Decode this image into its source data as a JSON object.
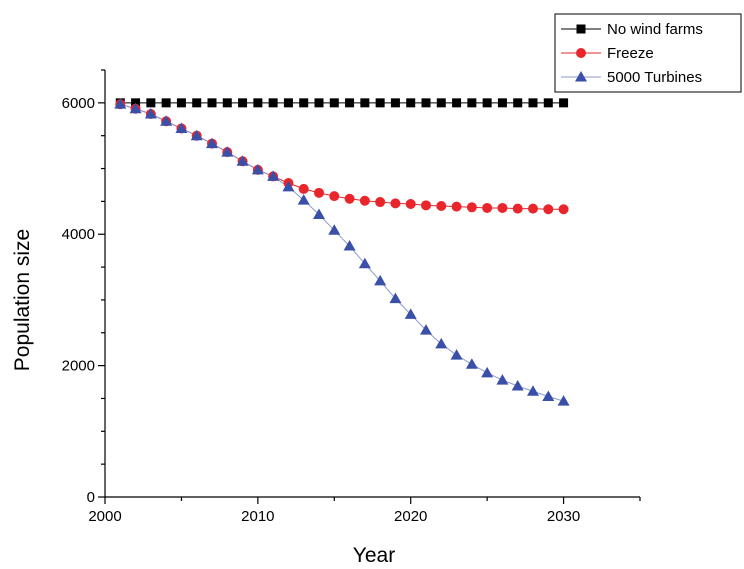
{
  "chart_data": {
    "type": "line",
    "title": "",
    "xlabel": "Year",
    "ylabel": "Population size",
    "xlim": [
      2000,
      2035
    ],
    "ylim": [
      0,
      6500
    ],
    "x_ticks": [
      2000,
      2010,
      2020,
      2030
    ],
    "y_ticks": [
      0,
      2000,
      4000,
      6000
    ],
    "grid": false,
    "legend_position": "top-right",
    "x": [
      2001,
      2002,
      2003,
      2004,
      2005,
      2006,
      2007,
      2008,
      2009,
      2010,
      2011,
      2012,
      2013,
      2014,
      2015,
      2016,
      2017,
      2018,
      2019,
      2020,
      2021,
      2022,
      2023,
      2024,
      2025,
      2026,
      2027,
      2028,
      2029,
      2030
    ],
    "series": [
      {
        "name": "No wind farms",
        "color": "#000000",
        "marker": "square",
        "values": [
          6000,
          6000,
          6000,
          6000,
          6000,
          6000,
          6000,
          6000,
          6000,
          6000,
          6000,
          6000,
          6000,
          6000,
          6000,
          6000,
          6000,
          6000,
          6000,
          6000,
          6000,
          6000,
          6000,
          6000,
          6000,
          6000,
          6000,
          6000,
          6000,
          6000
        ]
      },
      {
        "name": "Freeze",
        "color": "#e8262b",
        "marker": "circle",
        "values": [
          5980,
          5910,
          5830,
          5720,
          5610,
          5500,
          5380,
          5250,
          5110,
          4980,
          4880,
          4780,
          4690,
          4630,
          4580,
          4540,
          4510,
          4490,
          4470,
          4460,
          4440,
          4430,
          4420,
          4410,
          4400,
          4400,
          4390,
          4390,
          4380,
          4380
        ]
      },
      {
        "name": "5000 Turbines",
        "color": "#3a50a8",
        "line_color": "#8e9ad0",
        "marker": "triangle",
        "values": [
          5980,
          5910,
          5830,
          5720,
          5610,
          5500,
          5380,
          5250,
          5110,
          4980,
          4880,
          4720,
          4520,
          4300,
          4060,
          3820,
          3550,
          3290,
          3020,
          2780,
          2540,
          2330,
          2160,
          2020,
          1890,
          1780,
          1690,
          1610,
          1530,
          1460
        ]
      }
    ]
  }
}
